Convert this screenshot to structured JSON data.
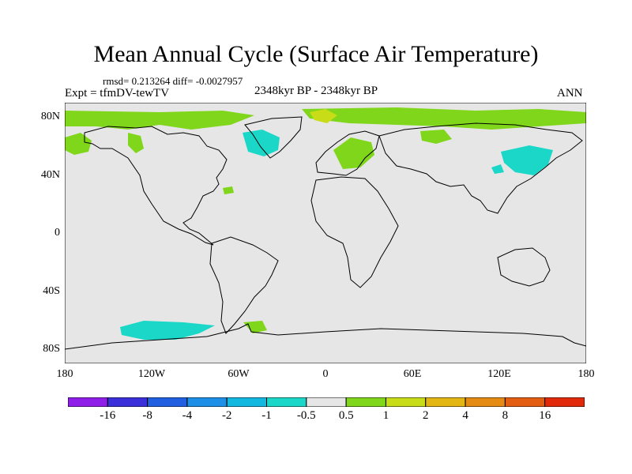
{
  "title": "Mean Annual Cycle (Surface Air Temperature)",
  "stats": {
    "rmsd_label": "rmsd=",
    "rmsd": "0.213264",
    "diff_label": "diff=",
    "diff": "-0.0027957"
  },
  "expt": "Expt = tfmDV-tewTV",
  "period": "2348kyr BP - 2348kyr BP",
  "season": "ANN",
  "lat_labels": [
    "80N",
    "40N",
    "0",
    "40S",
    "80S"
  ],
  "lon_labels": [
    "180",
    "120W",
    "60W",
    "0",
    "60E",
    "120E",
    "180"
  ],
  "colorbar": {
    "labels": [
      "-16",
      "-8",
      "-4",
      "-2",
      "-1",
      "-0.5",
      "0.5",
      "1",
      "2",
      "4",
      "8",
      "16"
    ],
    "colors": [
      "#8f1fe8",
      "#3a2fd8",
      "#1f5fe0",
      "#1d8fe6",
      "#12b8e0",
      "#1ad7c8",
      "#e6e6e6",
      "#7fd61a",
      "#c8dc18",
      "#e4b614",
      "#e58a12",
      "#e35e10",
      "#e02a0a"
    ]
  },
  "colors": {
    "background_field": "#e6e6e6",
    "positive_anomaly": "#7fd61a",
    "positive_strong": "#c8dc18",
    "negative_anomaly": "#1ad7c8",
    "negative_strong": "#12b8e0"
  }
}
